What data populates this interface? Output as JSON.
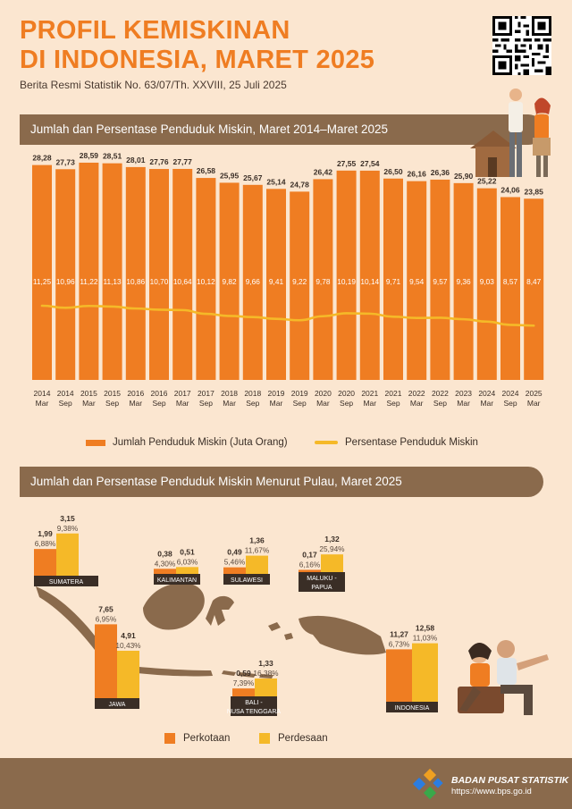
{
  "header": {
    "title_line1": "PROFIL KEMISKINAN",
    "title_line2": "DI INDONESIA, MARET 2025",
    "subtitle": "Berita Resmi Statistik No. 63/07/Th. XXVIII, 25 Juli 2025"
  },
  "section1": {
    "title": "Jumlah dan Persentase Penduduk Miskin, Maret 2014–Maret 2025"
  },
  "section2": {
    "title": "Jumlah dan Persentase Penduduk Miskin Menurut Pulau, Maret 2025"
  },
  "colors": {
    "orange": "#ef7d22",
    "yellow": "#f5b928",
    "brown": "#8a6a4c",
    "background": "#fbe6d0"
  },
  "chart_data": [
    {
      "type": "bar",
      "categories": [
        "2014 Mar",
        "2014 Sep",
        "2015 Mar",
        "2015 Sep",
        "2016 Mar",
        "2016 Sep",
        "2017 Mar",
        "2017 Sep",
        "2018 Mar",
        "2018 Sep",
        "2019 Mar",
        "2019 Sep",
        "2020 Mar",
        "2020 Sep",
        "2021 Mar",
        "2021 Sep",
        "2022 Mar",
        "2022 Sep",
        "2023 Mar",
        "2024 Mar",
        "2024 Sep",
        "2025 Mar"
      ],
      "series": [
        {
          "name": "Jumlah Penduduk Miskin (Juta Orang)",
          "type": "bar",
          "values": [
            28.28,
            27.73,
            28.59,
            28.51,
            28.01,
            27.76,
            27.77,
            26.58,
            25.95,
            25.67,
            25.14,
            24.78,
            26.42,
            27.55,
            27.54,
            26.5,
            26.16,
            26.36,
            25.9,
            25.22,
            24.06,
            23.85
          ],
          "labels": [
            "28,28",
            "27,73",
            "28,59",
            "28,51",
            "28,01",
            "27,76",
            "27,77",
            "26,58",
            "25,95",
            "25,67",
            "25,14",
            "24,78",
            "26,42",
            "27,55",
            "27,54",
            "26,50",
            "26,16",
            "26,36",
            "25,90",
            "25,22",
            "24,06",
            "23,85"
          ]
        },
        {
          "name": "Persentase Penduduk Miskin",
          "type": "line",
          "values": [
            11.25,
            10.96,
            11.22,
            11.13,
            10.86,
            10.7,
            10.64,
            10.12,
            9.82,
            9.66,
            9.41,
            9.22,
            9.78,
            10.19,
            10.14,
            9.71,
            9.54,
            9.57,
            9.36,
            9.03,
            8.57,
            8.47
          ],
          "labels": [
            "11,25",
            "10,96",
            "11,22",
            "11,13",
            "10,86",
            "10,70",
            "10,64",
            "10,12",
            "9,82",
            "9,66",
            "9,41",
            "9,22",
            "9,78",
            "10,19",
            "10,14",
            "9,71",
            "9,54",
            "9,57",
            "9,36",
            "9,03",
            "8,57",
            "8,47"
          ]
        }
      ],
      "legend_placement": "bottom",
      "grid": false
    },
    {
      "type": "bar",
      "categories": [
        "SUMATERA",
        "KALIMANTAN",
        "SULAWESI",
        "MALUKU - PAPUA",
        "JAWA",
        "BALI - NUSA TENGGARA",
        "INDONESIA"
      ],
      "series": [
        {
          "name": "Perkotaan",
          "values": [
            1.99,
            0.38,
            0.49,
            0.17,
            7.65,
            0.59,
            11.27
          ],
          "labels": [
            "1,99",
            "0,38",
            "0,49",
            "0,17",
            "7,65",
            "0,59",
            "11,27"
          ],
          "pct_labels": [
            "6,88%",
            "4,30%",
            "5,46%",
            "6,16%",
            "6,95%",
            "7,39%",
            "6,73%"
          ]
        },
        {
          "name": "Perdesaan",
          "values": [
            3.15,
            0.51,
            1.36,
            1.32,
            4.91,
            1.33,
            12.58
          ],
          "labels": [
            "3,15",
            "0,51",
            "1,36",
            "1,32",
            "4,91",
            "1,33",
            "12,58"
          ],
          "pct_labels": [
            "9,38%",
            "6,03%",
            "11,67%",
            "25,94%",
            "10,43%",
            "16,38%",
            "11,03%"
          ]
        }
      ],
      "legend_placement": "bottom"
    }
  ],
  "footer": {
    "org": "BADAN PUSAT STATISTIK",
    "url": "https://www.bps.go.id"
  }
}
